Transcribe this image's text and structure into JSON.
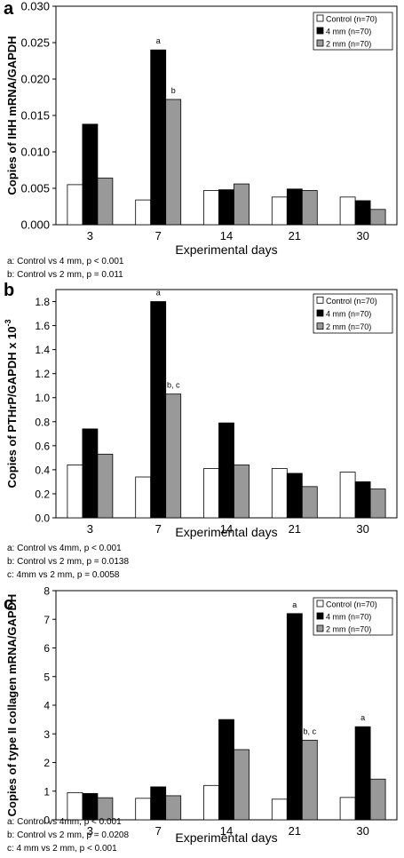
{
  "chart_data": [
    {
      "panel_letter": "a",
      "type": "bar",
      "title": "",
      "xlabel": "Experimental days",
      "ylabel": "Copies of IHH mRNA/GAPDH",
      "ylim": [
        0,
        0.03
      ],
      "yticks": [
        "0.000",
        "0.005",
        "0.010",
        "0.015",
        "0.020",
        "0.025",
        "0.030"
      ],
      "categories": [
        "3",
        "7",
        "14",
        "21",
        "30"
      ],
      "legend_position": "top-right",
      "series": [
        {
          "name": "Control (n=70)",
          "color": "#ffffff",
          "values": [
            0.0055,
            0.0034,
            0.0047,
            0.0038,
            0.0038
          ]
        },
        {
          "name": "4 mm (n=70)",
          "color": "#000000",
          "values": [
            0.0138,
            0.024,
            0.0048,
            0.0049,
            0.0033
          ]
        },
        {
          "name": "2 mm (n=70)",
          "color": "#999999",
          "values": [
            0.0064,
            0.0172,
            0.0056,
            0.0047,
            0.0021
          ]
        }
      ],
      "annotations": [
        {
          "text": "a",
          "category": "7",
          "series": 1
        },
        {
          "text": "b",
          "category": "7",
          "series": 2
        }
      ],
      "footnotes": [
        "a: Control vs 4 mm, p < 0.001",
        "b: Control vs 2 mm, p = 0.011"
      ]
    },
    {
      "panel_letter": "b",
      "type": "bar",
      "title": "",
      "xlabel": "Experimental days",
      "ylabel": "Copies of PTHrP/GAPDH x 10",
      "ylabel_superscript": "-3",
      "ylim": [
        0,
        1.9
      ],
      "yticks": [
        "0.0",
        "0.2",
        "0.4",
        "0.6",
        "0.8",
        "1.0",
        "1.2",
        "1.4",
        "1.6",
        "1.8"
      ],
      "categories": [
        "3",
        "7",
        "14",
        "21",
        "30"
      ],
      "legend_position": "top-right",
      "series": [
        {
          "name": "Control (n=70)",
          "color": "#ffffff",
          "values": [
            0.44,
            0.34,
            0.41,
            0.41,
            0.38
          ]
        },
        {
          "name": "4 mm (n=70)",
          "color": "#000000",
          "values": [
            0.74,
            1.8,
            0.79,
            0.37,
            0.3
          ]
        },
        {
          "name": "2 mm (n=70)",
          "color": "#999999",
          "values": [
            0.53,
            1.03,
            0.44,
            0.26,
            0.24
          ]
        }
      ],
      "annotations": [
        {
          "text": "a",
          "category": "7",
          "series": 1
        },
        {
          "text": "b, c",
          "category": "7",
          "series": 2
        }
      ],
      "footnotes": [
        "a: Control vs 4mm, p < 0.001",
        "b: Control vs 2 mm, p = 0.0138",
        "c: 4mm vs 2 mm, p = 0.0058"
      ]
    },
    {
      "panel_letter": "c",
      "type": "bar",
      "title": "",
      "xlabel": "Experimental days",
      "ylabel": "Copies of type II collagen mRNA/GAPDH",
      "ylim": [
        0,
        8
      ],
      "yticks": [
        "0",
        "1",
        "2",
        "3",
        "4",
        "5",
        "6",
        "7",
        "8"
      ],
      "categories": [
        "3",
        "7",
        "14",
        "21",
        "30"
      ],
      "legend_position": "top-right",
      "series": [
        {
          "name": "Control (n=70)",
          "color": "#ffffff",
          "values": [
            0.95,
            0.75,
            1.2,
            0.72,
            0.78
          ]
        },
        {
          "name": "4 mm (n=70)",
          "color": "#000000",
          "values": [
            0.92,
            1.15,
            3.5,
            7.2,
            3.25
          ]
        },
        {
          "name": "2 mm (n=70)",
          "color": "#999999",
          "values": [
            0.77,
            0.84,
            2.45,
            2.78,
            1.42
          ]
        }
      ],
      "annotations": [
        {
          "text": "a",
          "category": "21",
          "series": 1
        },
        {
          "text": "b, c",
          "category": "21",
          "series": 2
        },
        {
          "text": "a",
          "category": "30",
          "series": 1
        }
      ],
      "footnotes": [
        "a: Control vs 4mm, p < 0.001",
        "b: Control vs 2 mm, p = 0.0208",
        "c: 4 mm vs 2 mm, p < 0.001"
      ]
    }
  ]
}
